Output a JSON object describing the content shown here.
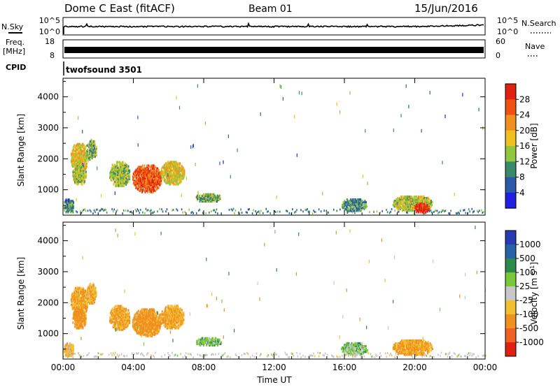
{
  "header": {
    "title": "Dome C East (fitACF)",
    "beam": "Beam 01",
    "date": "15/Jun/2016"
  },
  "strips": {
    "nsky_label": "N.Sky",
    "nsearch_label": "N.Search",
    "noise_ticks": [
      "10^5",
      "10^0"
    ],
    "freq_label": "Freq.",
    "freq_unit": "[MHz]",
    "freq_ticks": [
      "18",
      "8"
    ],
    "nave_label": "Nave",
    "nave_ticks": [
      "60",
      "0"
    ],
    "cpid_label": "CPID",
    "cpid_value": "twofsound 3501"
  },
  "colors": {
    "power": [
      "#2020e0",
      "#2a5aa8",
      "#3a8a6a",
      "#8fc83c",
      "#f0c020",
      "#f09020",
      "#f05010",
      "#e02010"
    ],
    "velocity": [
      "#2a3ab0",
      "#2a62a8",
      "#2a8a4a",
      "#78c83a",
      "#c8c8c8",
      "#f0c030",
      "#f09020",
      "#f06020",
      "#e02010"
    ]
  },
  "chart_data": [
    {
      "type": "heatmap",
      "name": "power",
      "title": "",
      "xlabel": "",
      "ylabel": "Slant Range [km]",
      "xlim": [
        0,
        24
      ],
      "ylim": [
        180,
        4600
      ],
      "xticks": [
        0,
        4,
        8,
        12,
        16,
        20,
        24
      ],
      "yticks": [
        1000,
        2000,
        3000,
        4000
      ],
      "ytick_labels": [
        "1000",
        "2000",
        "3000",
        "4000"
      ],
      "colorbar": {
        "label": "Power [dB]",
        "ticks": [
          "4",
          "8",
          "12",
          "16",
          "20",
          "24",
          "28"
        ],
        "range": [
          0,
          32
        ]
      },
      "regions": [
        {
          "t": [
            0.4,
            1.4
          ],
          "r": [
            1500,
            2500
          ],
          "v": 18
        },
        {
          "t": [
            0.5,
            1.3
          ],
          "r": [
            1100,
            1800
          ],
          "v": 15
        },
        {
          "t": [
            1.3,
            1.9
          ],
          "r": [
            1900,
            2600
          ],
          "v": 12
        },
        {
          "t": [
            2.6,
            3.8
          ],
          "r": [
            1050,
            1900
          ],
          "v": 14
        },
        {
          "t": [
            3.9,
            5.6
          ],
          "r": [
            850,
            1800
          ],
          "v": 26
        },
        {
          "t": [
            5.5,
            6.9
          ],
          "r": [
            1100,
            1900
          ],
          "v": 18
        },
        {
          "t": [
            7.5,
            9.0
          ],
          "r": [
            550,
            850
          ],
          "v": 12
        },
        {
          "t": [
            15.8,
            17.3
          ],
          "r": [
            250,
            700
          ],
          "v": 10
        },
        {
          "t": [
            18.7,
            21.0
          ],
          "r": [
            250,
            800
          ],
          "v": 16
        },
        {
          "t": [
            19.9,
            20.8
          ],
          "r": [
            200,
            550
          ],
          "v": 29
        },
        {
          "t": [
            0.0,
            0.6
          ],
          "r": [
            200,
            700
          ],
          "v": 9
        }
      ]
    },
    {
      "type": "heatmap",
      "name": "velocity",
      "title": "",
      "xlabel": "Time UT",
      "ylabel": "Slant Range [km]",
      "xlim": [
        0,
        24
      ],
      "ylim": [
        180,
        4600
      ],
      "xticks": [
        0,
        4,
        8,
        12,
        16,
        20,
        24
      ],
      "xtick_labels": [
        "00:00",
        "04:00",
        "08:00",
        "12:00",
        "16:00",
        "20:00",
        "00:00"
      ],
      "yticks": [
        1000,
        2000,
        3000,
        4000
      ],
      "ytick_labels": [
        "1000",
        "2000",
        "3000",
        "4000"
      ],
      "colorbar": {
        "label": "Velocity [m s-1]",
        "ticks": [
          "1000",
          "500",
          "100",
          "25",
          "-25",
          "-100",
          "-500",
          "-1000"
        ]
      },
      "regions": [
        {
          "t": [
            0.4,
            1.4
          ],
          "r": [
            1500,
            2500
          ],
          "v": -120
        },
        {
          "t": [
            0.5,
            1.3
          ],
          "r": [
            1100,
            1800
          ],
          "v": -150
        },
        {
          "t": [
            1.3,
            1.9
          ],
          "r": [
            1900,
            2600
          ],
          "v": -80
        },
        {
          "t": [
            2.6,
            3.8
          ],
          "r": [
            1050,
            1900
          ],
          "v": -110
        },
        {
          "t": [
            3.9,
            5.6
          ],
          "r": [
            850,
            1800
          ],
          "v": -140
        },
        {
          "t": [
            5.5,
            6.9
          ],
          "r": [
            1100,
            1900
          ],
          "v": -110
        },
        {
          "t": [
            7.5,
            9.0
          ],
          "r": [
            550,
            850
          ],
          "v": 60
        },
        {
          "t": [
            15.8,
            17.3
          ],
          "r": [
            250,
            700
          ],
          "v": 50
        },
        {
          "t": [
            18.7,
            21.0
          ],
          "r": [
            250,
            800
          ],
          "v": -110
        },
        {
          "t": [
            0.0,
            0.6
          ],
          "r": [
            200,
            700
          ],
          "v": -60
        }
      ]
    }
  ]
}
